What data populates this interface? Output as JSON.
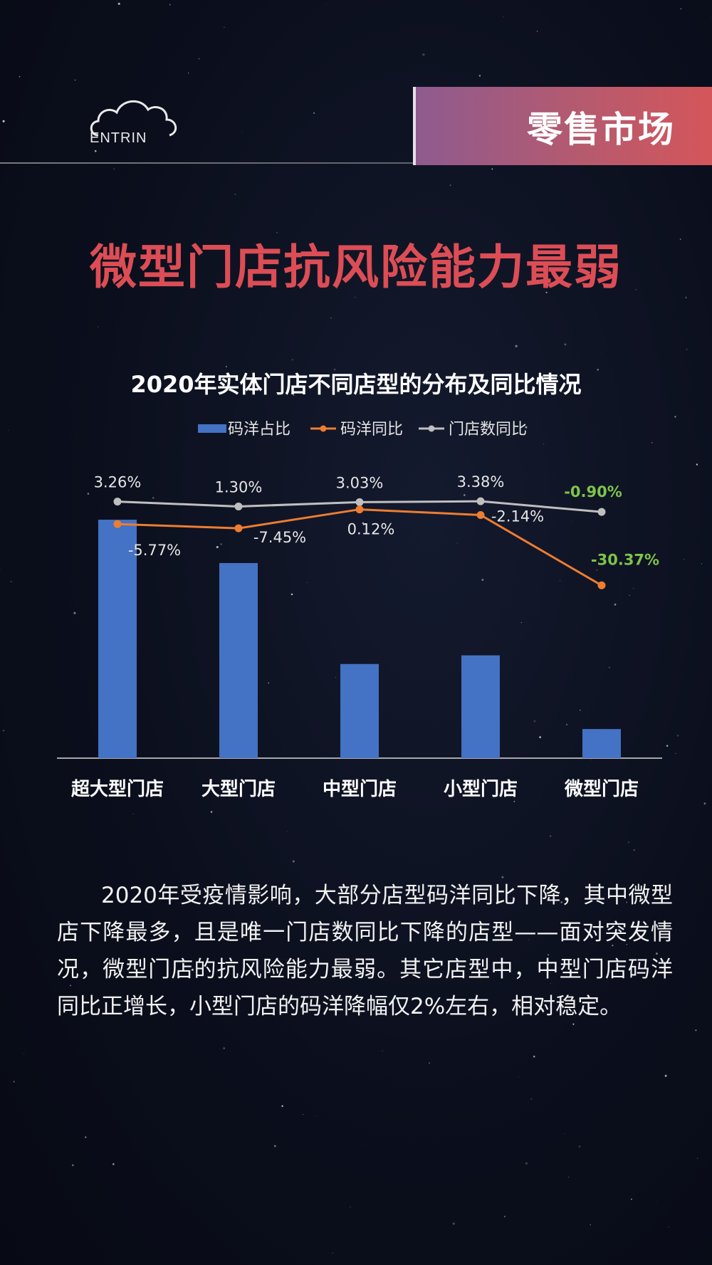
{
  "header": {
    "logo_text": "ENTRIN",
    "section_tag": "零售市场"
  },
  "main_title": "微型门店抗风险能力最弱",
  "chart_data": {
    "type": "bar",
    "title": "2020年实体门店不同店型的分布及同比情况",
    "categories": [
      "超大型门店",
      "大型门店",
      "中型门店",
      "小型门店",
      "微型门店"
    ],
    "legend_position": "top",
    "series": [
      {
        "name": "码洋占比",
        "type": "bar",
        "color": "#4472c4",
        "values": [
          38.5,
          31.5,
          15.2,
          16.6,
          4.7
        ]
      },
      {
        "name": "码洋同比",
        "type": "line",
        "color": "#ed7d31",
        "values": [
          -5.77,
          -7.45,
          0.12,
          -2.14,
          -30.37
        ],
        "labels": [
          "-5.77%",
          "-7.45%",
          "0.12%",
          "-2.14%",
          "-30.37%"
        ]
      },
      {
        "name": "门店数同比",
        "type": "line",
        "color": "#bfbfbf",
        "values": [
          3.26,
          1.3,
          3.03,
          3.38,
          -0.9
        ],
        "labels": [
          "3.26%",
          "1.30%",
          "3.03%",
          "3.38%",
          "-0.90%"
        ]
      }
    ],
    "highlight_color": "#7dc44a"
  },
  "body_text": "2020年受疫情影响，大部分店型码洋同比下降，其中微型店下降最多，且是唯一门店数同比下降的店型——面对突发情况，微型门店的抗风险能力最弱。其它店型中，中型门店码洋同比正增长，小型门店的码洋降幅仅2%左右，相对稳定。"
}
